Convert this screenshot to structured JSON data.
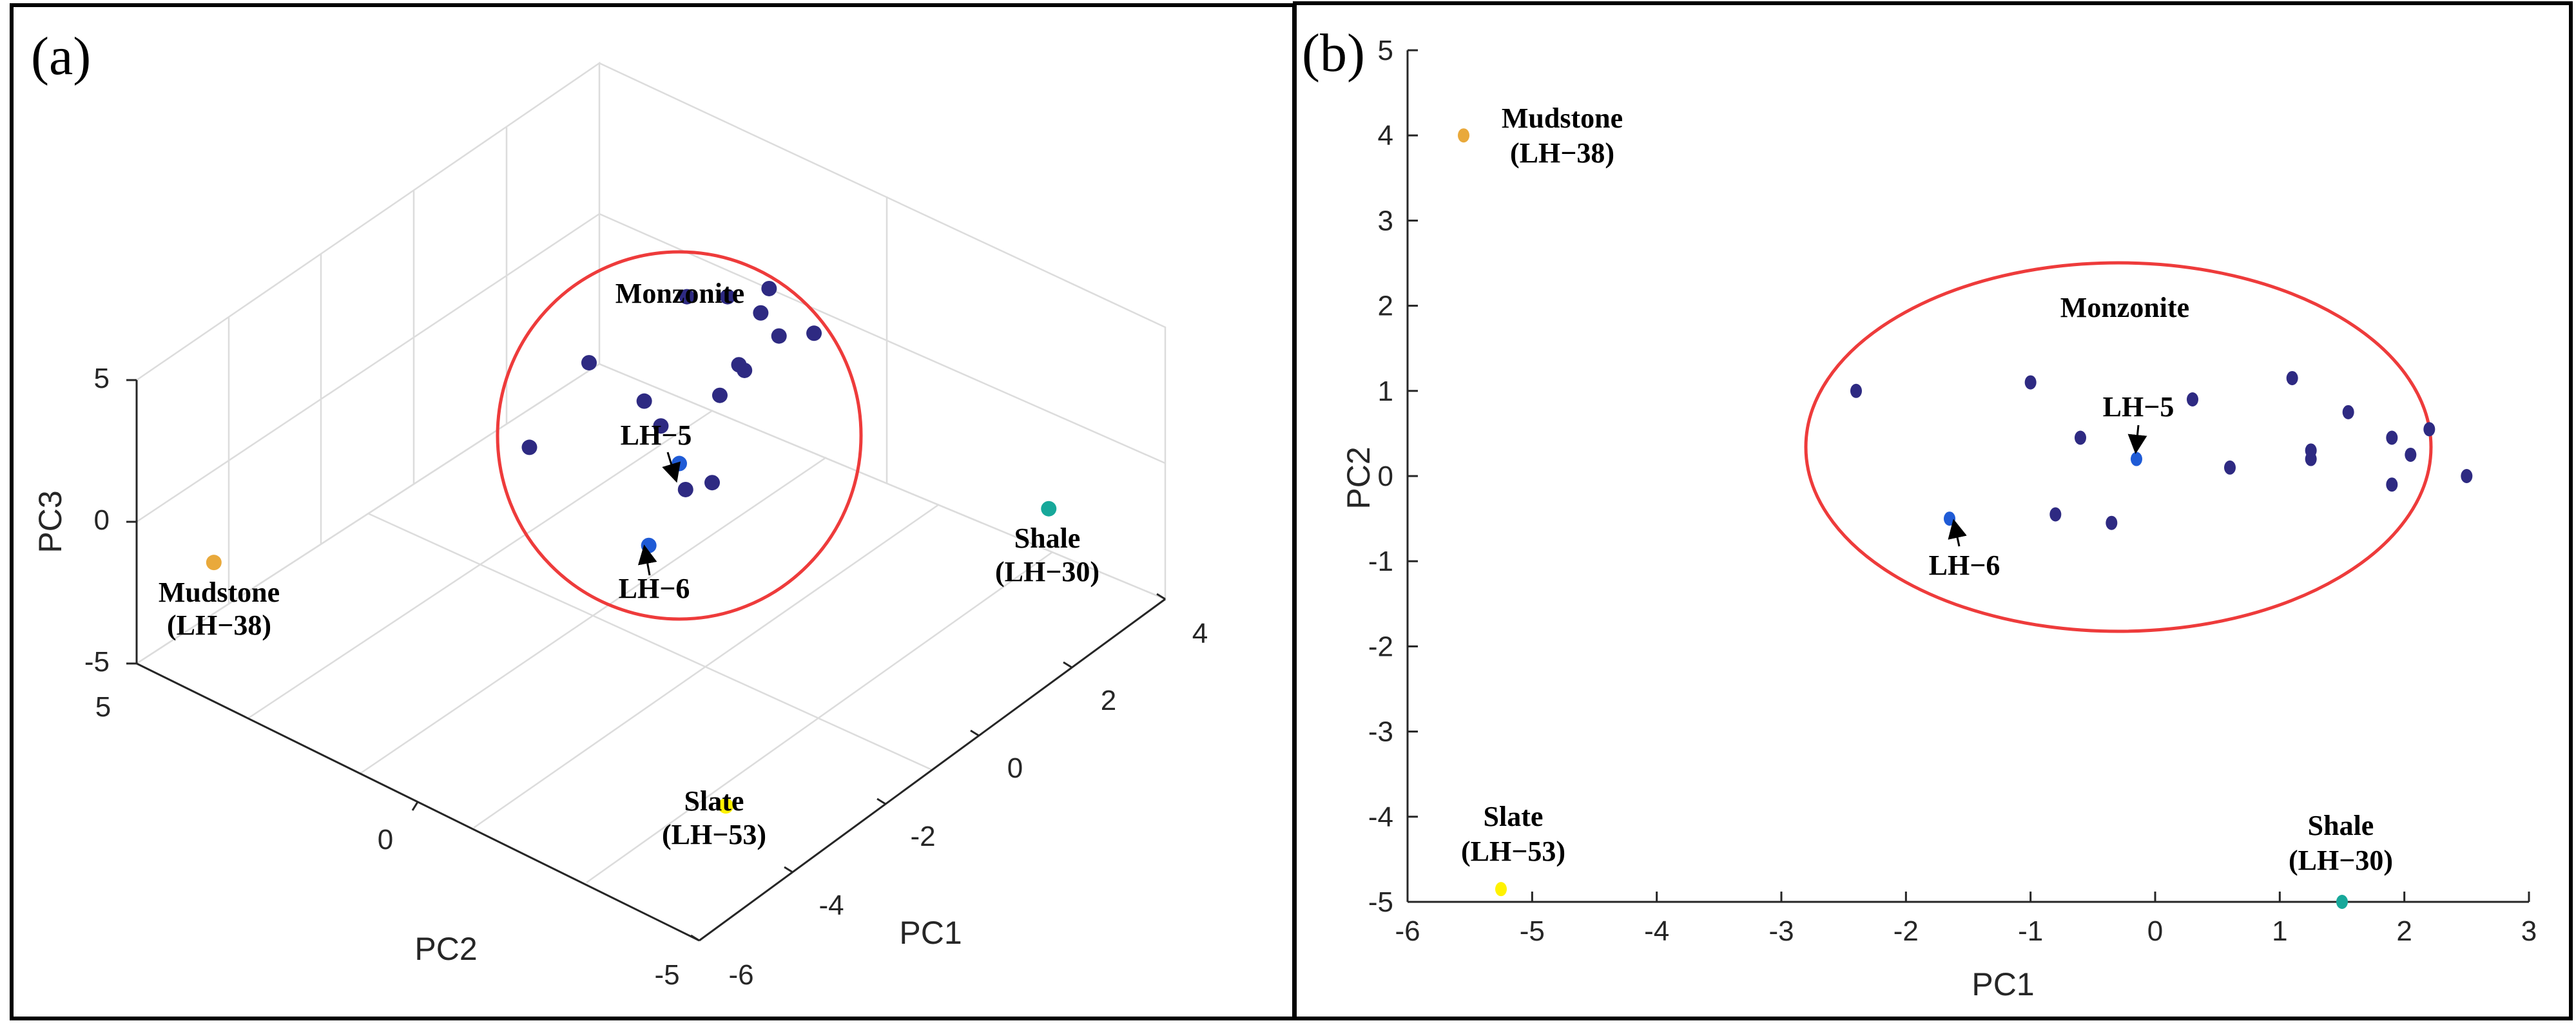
{
  "colors": {
    "monzonite": "#2e2a82",
    "highlight": "#1f5bd6",
    "mudstone": "#e9a93b",
    "slate": "#fff200",
    "shale": "#17a89a",
    "ring": "#ee3b3b"
  },
  "chart_data": [
    {
      "type": "scatter",
      "panel_label": "(a)",
      "projection": "3d",
      "xlabel": "PC1",
      "ylabel": "PC2",
      "zlabel": "PC3",
      "xlim": [
        -6,
        4
      ],
      "ylim": [
        -5,
        5
      ],
      "zlim": [
        -5,
        5
      ],
      "xticks": [
        "-6",
        "-4",
        "-2",
        "0",
        "2",
        "4"
      ],
      "yticks": [
        "-5",
        "0",
        "5"
      ],
      "zticks": [
        "-5",
        "0",
        "5"
      ],
      "series": [
        {
          "name": "Monzonite",
          "points": [
            {
              "x": -2.4,
              "y": 1.0,
              "z": 2.2
            },
            {
              "x": -1.0,
              "y": 1.1,
              "z": 3.4
            },
            {
              "x": 1.1,
              "y": 1.1,
              "z": 3.2
            },
            {
              "x": 1.55,
              "y": 0.75,
              "z": 3.0
            },
            {
              "x": 2.2,
              "y": 0.55,
              "z": 2.7
            },
            {
              "x": 1.9,
              "y": 0.45,
              "z": 2.3
            },
            {
              "x": -0.6,
              "y": 0.45,
              "z": 2.2
            },
            {
              "x": 1.25,
              "y": 0.3,
              "z": 1.4
            },
            {
              "x": 1.25,
              "y": 0.2,
              "z": 1.3
            },
            {
              "x": 2.05,
              "y": 0.25,
              "z": 1.5
            },
            {
              "x": 2.5,
              "y": 0.0,
              "z": 1.3
            },
            {
              "x": 0.6,
              "y": 0.1,
              "z": 1.3
            },
            {
              "x": -0.8,
              "y": -0.45,
              "z": 0.2
            },
            {
              "x": -0.35,
              "y": -0.55,
              "z": 0.0
            },
            {
              "x": 0.3,
              "y": 0.9,
              "z": -0.2
            }
          ]
        },
        {
          "name": "LH-5",
          "points": [
            {
              "x": -0.15,
              "y": 0.2,
              "z": -0.3
            }
          ]
        },
        {
          "name": "LH-6",
          "points": [
            {
              "x": -1.65,
              "y": -0.5,
              "z": -0.7
            }
          ]
        },
        {
          "name": "Mudstone (LH-38)",
          "points": [
            {
              "x": -5.55,
              "y": 4.0,
              "z": -1.0
            }
          ]
        },
        {
          "name": "Slate (LH-53)",
          "points": [
            {
              "x": -5.25,
              "y": -4.85,
              "z": -1.3
            }
          ]
        },
        {
          "name": "Shale (LH-30)",
          "points": [
            {
              "x": 1.5,
              "y": -5.0,
              "z": 1.2
            }
          ]
        }
      ],
      "annotations": {
        "monzonite": "Monzonite",
        "lh5": "LH−5",
        "lh6": "LH−6",
        "mudstone": "Mudstone",
        "mudstone_id": "(LH−38)",
        "slate": "Slate",
        "slate_id": "(LH−53)",
        "shale": "Shale",
        "shale_id": "(LH−30)"
      }
    },
    {
      "type": "scatter",
      "panel_label": "(b)",
      "xlabel": "PC1",
      "ylabel": "PC2",
      "xlim": [
        -6,
        3
      ],
      "ylim": [
        -5,
        5
      ],
      "xticks": [
        "-6",
        "-5",
        "-4",
        "-3",
        "-2",
        "-1",
        "0",
        "1",
        "2",
        "3"
      ],
      "yticks": [
        "-5",
        "-4",
        "-3",
        "-2",
        "-1",
        "0",
        "1",
        "2",
        "3",
        "4",
        "5"
      ],
      "series": [
        {
          "name": "Monzonite",
          "points": [
            {
              "x": -2.4,
              "y": 1.0
            },
            {
              "x": -1.0,
              "y": 1.1
            },
            {
              "x": 0.3,
              "y": 0.9
            },
            {
              "x": 1.1,
              "y": 1.15
            },
            {
              "x": 1.55,
              "y": 0.75
            },
            {
              "x": 2.2,
              "y": 0.55
            },
            {
              "x": 1.9,
              "y": 0.45
            },
            {
              "x": -0.6,
              "y": 0.45
            },
            {
              "x": 1.25,
              "y": 0.3
            },
            {
              "x": 1.25,
              "y": 0.2
            },
            {
              "x": 2.05,
              "y": 0.25
            },
            {
              "x": 2.5,
              "y": 0.0
            },
            {
              "x": 0.6,
              "y": 0.1
            },
            {
              "x": 1.9,
              "y": -0.1
            },
            {
              "x": -0.8,
              "y": -0.45
            },
            {
              "x": -0.35,
              "y": -0.55
            }
          ]
        },
        {
          "name": "LH-5",
          "points": [
            {
              "x": -0.15,
              "y": 0.2
            }
          ]
        },
        {
          "name": "LH-6",
          "points": [
            {
              "x": -1.65,
              "y": -0.5
            }
          ]
        },
        {
          "name": "Mudstone (LH-38)",
          "points": [
            {
              "x": -5.55,
              "y": 4.0
            }
          ]
        },
        {
          "name": "Slate (LH-53)",
          "points": [
            {
              "x": -5.25,
              "y": -4.85
            }
          ]
        },
        {
          "name": "Shale (LH-30)",
          "points": [
            {
              "x": 1.5,
              "y": -5.0
            }
          ]
        }
      ],
      "annotations": {
        "monzonite": "Monzonite",
        "lh5": "LH−5",
        "lh6": "LH−6",
        "mudstone": "Mudstone",
        "mudstone_id": "(LH−38)",
        "slate": "Slate",
        "slate_id": "(LH−53)",
        "shale": "Shale",
        "shale_id": "(LH−30)"
      }
    }
  ]
}
